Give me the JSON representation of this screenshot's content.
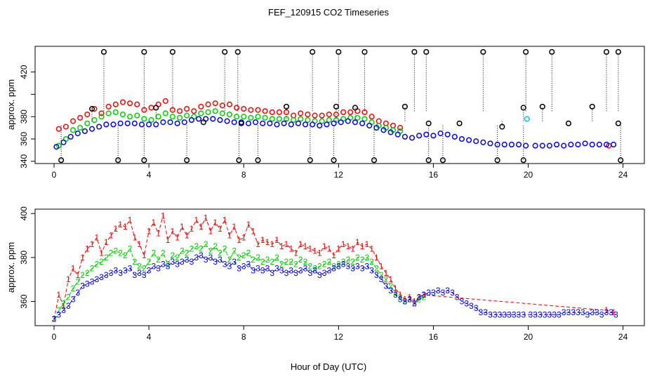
{
  "title": "FEF_120915  CO2 Timeseries",
  "xlabel": "Hour of Day (UTC)",
  "colors": {
    "red": "#ff0000",
    "green": "#00cc00",
    "blue": "#0000ff",
    "cyan": "#00cccc",
    "black": "#000000"
  },
  "chart_data": [
    {
      "type": "scatter",
      "panel": "top",
      "ylabel": "approx. ppm",
      "xlim": [
        -0.8,
        24.9
      ],
      "ylim": [
        338,
        443
      ],
      "x_ticks": [
        0,
        4,
        8,
        12,
        16,
        20,
        24
      ],
      "x_tick_labels": [
        "0",
        "4",
        "8",
        "12",
        "16",
        "20",
        "24"
      ],
      "y_ticks": [
        340,
        360,
        380,
        400,
        420
      ],
      "y_tick_labels": [
        "340",
        "360",
        "380",
        "",
        "420"
      ],
      "series": [
        {
          "color": "#ff0000",
          "marker": "circle",
          "x": [
            0.2,
            0.5,
            0.8,
            1.1,
            1.4,
            1.7,
            2.0,
            2.3,
            2.6,
            2.9,
            3.2,
            3.5,
            3.8,
            4.1,
            4.4,
            4.7,
            5.0,
            5.3,
            5.6,
            5.9,
            6.2,
            6.5,
            6.8,
            7.1,
            7.4,
            7.7,
            8.0,
            8.3,
            8.6,
            8.9,
            9.2,
            9.5,
            9.8,
            10.1,
            10.4,
            10.7,
            11.0,
            11.3,
            11.6,
            11.9,
            12.2,
            12.5,
            12.8,
            13.1,
            13.4,
            13.7,
            14.0,
            14.3,
            14.6,
            23.4
          ],
          "y": [
            369,
            371,
            376,
            379,
            382,
            387,
            383,
            389,
            391,
            393,
            392,
            391,
            386,
            388,
            391,
            394,
            386,
            385,
            387,
            385,
            389,
            391,
            392,
            390,
            391,
            388,
            387,
            386,
            386,
            385,
            384,
            384,
            384,
            381,
            383,
            382,
            381,
            381,
            382,
            382,
            384,
            384,
            385,
            384,
            380,
            376,
            374,
            372,
            370,
            354
          ]
        },
        {
          "color": "#00cc00",
          "marker": "circle",
          "x": [
            0.2,
            0.5,
            0.8,
            1.1,
            1.4,
            1.7,
            2.0,
            2.3,
            2.6,
            2.9,
            3.2,
            3.5,
            3.8,
            4.1,
            4.4,
            4.7,
            5.0,
            5.3,
            5.6,
            5.9,
            6.2,
            6.5,
            6.8,
            7.1,
            7.4,
            7.7,
            8.0,
            8.3,
            8.6,
            8.9,
            9.2,
            9.5,
            9.8,
            10.1,
            10.4,
            10.7,
            11.0,
            11.3,
            11.6,
            11.9,
            12.2,
            12.5,
            12.8,
            13.1,
            13.4,
            13.7,
            14.0,
            14.3,
            14.6
          ],
          "y": [
            354,
            360,
            368,
            370,
            374,
            377,
            380,
            383,
            384,
            382,
            380,
            381,
            378,
            377,
            380,
            383,
            380,
            379,
            381,
            380,
            383,
            384,
            385,
            383,
            382,
            380,
            380,
            379,
            380,
            379,
            378,
            378,
            378,
            377,
            378,
            377,
            376,
            376,
            377,
            377,
            378,
            379,
            379,
            378,
            375,
            372,
            370,
            368,
            367
          ]
        },
        {
          "color": "#0000ff",
          "marker": "circle",
          "x": [
            0.1,
            0.4,
            0.7,
            1.0,
            1.3,
            1.6,
            1.9,
            2.2,
            2.5,
            2.8,
            3.1,
            3.4,
            3.7,
            4.0,
            4.3,
            4.6,
            4.9,
            5.2,
            5.5,
            5.8,
            6.1,
            6.4,
            6.7,
            7.0,
            7.3,
            7.6,
            7.9,
            8.2,
            8.5,
            8.8,
            9.1,
            9.4,
            9.7,
            10.0,
            10.3,
            10.6,
            10.9,
            11.2,
            11.5,
            11.8,
            12.1,
            12.4,
            12.7,
            13.0,
            13.3,
            13.6,
            13.9,
            14.2,
            14.5,
            14.8,
            15.1,
            15.4,
            15.7,
            16.0,
            16.3,
            16.6,
            16.9,
            17.2,
            17.5,
            17.8,
            18.1,
            18.4,
            18.7,
            19.0,
            19.3,
            19.6,
            19.9,
            20.3,
            20.6,
            20.9,
            21.2,
            21.5,
            21.8,
            22.1,
            22.4,
            22.7,
            23.0,
            23.3,
            23.6
          ],
          "y": [
            353,
            357,
            362,
            365,
            367,
            369,
            371,
            373,
            373,
            374,
            374,
            374,
            373,
            373,
            373,
            375,
            375,
            374,
            375,
            377,
            378,
            378,
            378,
            377,
            376,
            375,
            375,
            374,
            375,
            374,
            374,
            373,
            374,
            373,
            374,
            373,
            373,
            372,
            373,
            374,
            375,
            376,
            375,
            374,
            372,
            370,
            368,
            366,
            364,
            362,
            361,
            363,
            364,
            363,
            365,
            364,
            362,
            360,
            359,
            358,
            357,
            356,
            355,
            355,
            355,
            355,
            354,
            354,
            354,
            354,
            355,
            354,
            355,
            355,
            356,
            355,
            355,
            355,
            355
          ]
        },
        {
          "color": "#000000",
          "marker": "circle",
          "x": [
            2.1,
            3.8,
            5.0,
            7.2,
            7.75,
            10.9,
            12.0,
            13.1,
            15.2,
            15.7,
            18.1,
            19.9,
            21.0,
            23.3,
            23.8,
            0.3,
            2.7,
            3.8,
            5.6,
            7.8,
            8.6,
            10.8,
            11.8,
            13.5,
            15.8,
            16.4,
            18.7,
            19.8,
            23.9,
            1.6,
            4.3,
            6.3,
            7.9,
            9.8,
            11.9,
            12.7,
            14.8,
            15.8,
            17.1,
            18.9,
            19.8,
            20.6,
            21.7,
            22.7,
            23.8
          ],
          "y": [
            438,
            438,
            438,
            438,
            438,
            438,
            438,
            438,
            438,
            438,
            438,
            438,
            438,
            438,
            438,
            341,
            341,
            341,
            341,
            341,
            341,
            341,
            341,
            341,
            341,
            341,
            341,
            341,
            341,
            387,
            388,
            375,
            374,
            389,
            389,
            388,
            389,
            374,
            374,
            371,
            388,
            389,
            374,
            389,
            374
          ]
        },
        {
          "color": "#00cccc",
          "marker": "circle",
          "x": [
            19.95
          ],
          "y": [
            378
          ]
        }
      ]
    },
    {
      "type": "line",
      "panel": "bottom",
      "ylabel": "approx. ppm",
      "xlim": [
        -0.8,
        24.9
      ],
      "ylim": [
        349,
        402
      ],
      "x_ticks": [
        0,
        4,
        8,
        12,
        16,
        20,
        24
      ],
      "x_tick_labels": [
        "0",
        "4",
        "8",
        "12",
        "16",
        "20",
        "24"
      ],
      "y_ticks": [
        360,
        380,
        400
      ],
      "y_tick_labels": [
        "360",
        "380",
        "400"
      ],
      "series": [
        {
          "color": "#ff0000",
          "label_char": "1",
          "x": [
            0.0,
            0.2,
            0.4,
            0.6,
            0.8,
            1.0,
            1.2,
            1.4,
            1.6,
            1.8,
            2.0,
            2.2,
            2.4,
            2.6,
            2.8,
            3.0,
            3.2,
            3.4,
            3.6,
            3.8,
            4.0,
            4.2,
            4.4,
            4.6,
            4.8,
            5.0,
            5.2,
            5.4,
            5.6,
            5.8,
            6.0,
            6.2,
            6.4,
            6.6,
            6.8,
            7.0,
            7.2,
            7.4,
            7.6,
            7.8,
            8.0,
            8.2,
            8.4,
            8.6,
            8.8,
            9.0,
            9.2,
            9.4,
            9.6,
            9.8,
            10.0,
            10.2,
            10.4,
            10.6,
            10.8,
            11.0,
            11.2,
            11.4,
            11.6,
            11.8,
            12.0,
            12.2,
            12.4,
            12.6,
            12.8,
            13.0,
            13.2,
            13.4,
            13.6,
            13.8,
            14.0,
            14.2,
            14.4,
            14.6,
            14.8,
            15.0,
            15.2,
            15.4,
            15.6,
            23.3,
            23.6
          ],
          "y": [
            352,
            363,
            358,
            370,
            375,
            372,
            380,
            384,
            386,
            389,
            382,
            387,
            390,
            393,
            395,
            394,
            397,
            389,
            386,
            381,
            392,
            396,
            391,
            399,
            388,
            392,
            389,
            394,
            390,
            393,
            397,
            394,
            398,
            392,
            396,
            393,
            397,
            390,
            394,
            388,
            389,
            395,
            392,
            386,
            388,
            387,
            386,
            388,
            385,
            386,
            384,
            382,
            386,
            385,
            384,
            383,
            382,
            385,
            384,
            381,
            384,
            386,
            385,
            384,
            387,
            385,
            386,
            384,
            380,
            376,
            373,
            370,
            366,
            363,
            361,
            362,
            360,
            362,
            363,
            356,
            355
          ]
        },
        {
          "color": "#00cc00",
          "label_char": "2",
          "x": [
            0.0,
            0.2,
            0.4,
            0.6,
            0.8,
            1.0,
            1.2,
            1.4,
            1.6,
            1.8,
            2.0,
            2.2,
            2.4,
            2.6,
            2.8,
            3.0,
            3.2,
            3.4,
            3.6,
            3.8,
            4.0,
            4.2,
            4.4,
            4.6,
            4.8,
            5.0,
            5.2,
            5.4,
            5.6,
            5.8,
            6.0,
            6.2,
            6.4,
            6.6,
            6.8,
            7.0,
            7.2,
            7.4,
            7.6,
            7.8,
            8.0,
            8.2,
            8.4,
            8.6,
            8.8,
            9.0,
            9.2,
            9.4,
            9.6,
            9.8,
            10.0,
            10.2,
            10.4,
            10.6,
            10.8,
            11.0,
            11.2,
            11.4,
            11.6,
            11.8,
            12.0,
            12.2,
            12.4,
            12.6,
            12.8,
            13.0,
            13.2,
            13.4,
            13.6,
            13.8,
            14.0,
            14.2,
            14.4,
            14.6,
            14.8,
            15.0,
            15.2,
            15.4,
            15.6
          ],
          "y": [
            352,
            356,
            359,
            362,
            366,
            369,
            372,
            373,
            375,
            377,
            378,
            380,
            382,
            383,
            382,
            381,
            384,
            378,
            376,
            375,
            378,
            382,
            379,
            382,
            377,
            381,
            380,
            383,
            382,
            384,
            385,
            384,
            386,
            383,
            385,
            382,
            384,
            379,
            383,
            380,
            381,
            382,
            379,
            380,
            378,
            379,
            378,
            380,
            377,
            378,
            378,
            377,
            379,
            378,
            376,
            375,
            376,
            377,
            378,
            376,
            377,
            378,
            379,
            378,
            380,
            379,
            380,
            378,
            375,
            372,
            370,
            367,
            364,
            362,
            360,
            361,
            359,
            361,
            362
          ]
        },
        {
          "color": "#0000ff",
          "label_char": "3",
          "x": [
            0.0,
            0.2,
            0.4,
            0.6,
            0.8,
            1.0,
            1.2,
            1.4,
            1.6,
            1.8,
            2.0,
            2.2,
            2.4,
            2.6,
            2.8,
            3.0,
            3.2,
            3.4,
            3.6,
            3.8,
            4.0,
            4.2,
            4.4,
            4.6,
            4.8,
            5.0,
            5.2,
            5.4,
            5.6,
            5.8,
            6.0,
            6.2,
            6.4,
            6.6,
            6.8,
            7.0,
            7.2,
            7.4,
            7.6,
            7.8,
            8.0,
            8.2,
            8.4,
            8.6,
            8.8,
            9.0,
            9.2,
            9.4,
            9.6,
            9.8,
            10.0,
            10.2,
            10.4,
            10.6,
            10.8,
            11.0,
            11.2,
            11.4,
            11.6,
            11.8,
            12.0,
            12.2,
            12.4,
            12.6,
            12.8,
            13.0,
            13.2,
            13.4,
            13.6,
            13.8,
            14.0,
            14.2,
            14.4,
            14.6,
            14.8,
            15.0,
            15.2,
            15.4,
            15.6,
            15.8,
            16.0,
            16.2,
            16.4,
            16.6,
            16.8,
            17.0,
            17.2,
            17.4,
            17.6,
            17.8,
            18.0,
            18.2,
            18.4,
            18.6,
            18.8,
            19.0,
            19.2,
            19.4,
            19.6,
            19.8,
            20.1,
            20.3,
            20.5,
            20.7,
            20.9,
            21.1,
            21.3,
            21.5,
            21.7,
            21.9,
            22.1,
            22.3,
            22.5,
            22.7,
            22.9,
            23.1,
            23.3,
            23.5,
            23.7
          ],
          "y": [
            352,
            354,
            356,
            358,
            361,
            364,
            367,
            368,
            369,
            370,
            371,
            372,
            373,
            374,
            373,
            374,
            375,
            372,
            373,
            372,
            374,
            376,
            375,
            377,
            376,
            378,
            377,
            378,
            379,
            378,
            380,
            381,
            379,
            380,
            378,
            379,
            377,
            376,
            378,
            375,
            376,
            377,
            374,
            375,
            374,
            375,
            373,
            375,
            374,
            373,
            374,
            373,
            374,
            375,
            373,
            374,
            372,
            373,
            374,
            375,
            376,
            377,
            376,
            375,
            376,
            375,
            376,
            374,
            372,
            370,
            367,
            365,
            363,
            361,
            360,
            361,
            359,
            362,
            363,
            364,
            364,
            365,
            364,
            365,
            364,
            362,
            360,
            359,
            358,
            357,
            355,
            355,
            354,
            354,
            354,
            354,
            354,
            354,
            354,
            354,
            354,
            354,
            354,
            354,
            354,
            354,
            354,
            355,
            355,
            355,
            355,
            355,
            354,
            355,
            355,
            354,
            355,
            355,
            354
          ]
        }
      ]
    }
  ]
}
